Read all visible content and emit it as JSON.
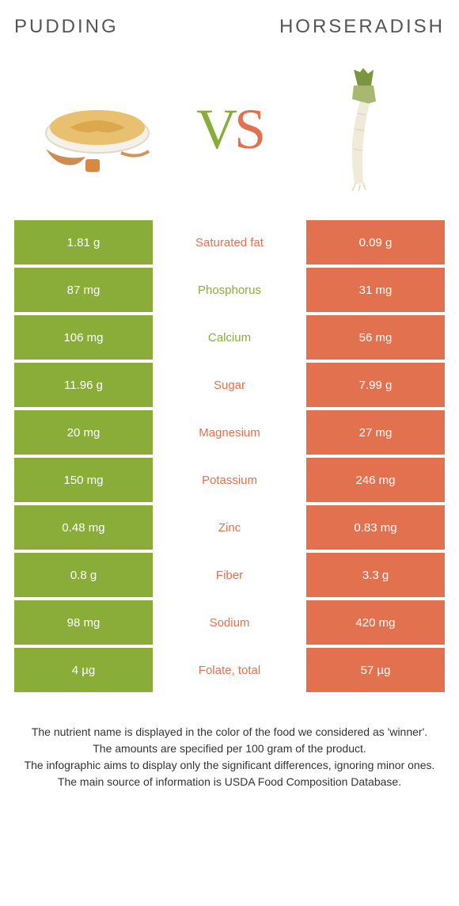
{
  "food1": {
    "title": "Pudding",
    "color": "#8aad3a"
  },
  "food2": {
    "title": "Horseradish",
    "color": "#e2724f"
  },
  "vs": {
    "v": "V",
    "s": "S"
  },
  "rows": [
    {
      "left": "1.81 g",
      "label": "Saturated fat",
      "right": "0.09 g",
      "winner": "right"
    },
    {
      "left": "87 mg",
      "label": "Phosphorus",
      "right": "31 mg",
      "winner": "left"
    },
    {
      "left": "106 mg",
      "label": "Calcium",
      "right": "56 mg",
      "winner": "left"
    },
    {
      "left": "11.96 g",
      "label": "Sugar",
      "right": "7.99 g",
      "winner": "right"
    },
    {
      "left": "20 mg",
      "label": "Magnesium",
      "right": "27 mg",
      "winner": "right"
    },
    {
      "left": "150 mg",
      "label": "Potassium",
      "right": "246 mg",
      "winner": "right"
    },
    {
      "left": "0.48 mg",
      "label": "Zinc",
      "right": "0.83 mg",
      "winner": "right"
    },
    {
      "left": "0.8 g",
      "label": "Fiber",
      "right": "3.3 g",
      "winner": "right"
    },
    {
      "left": "98 mg",
      "label": "Sodium",
      "right": "420 mg",
      "winner": "right"
    },
    {
      "left": "4 µg",
      "label": "Folate, total",
      "right": "57 µg",
      "winner": "right"
    }
  ],
  "footer": {
    "line1": "The nutrient name is displayed in the color of the food we considered as 'winner'.",
    "line2": "The amounts are specified per 100 gram of the product.",
    "line3": "The infographic aims to display only the significant differences, ignoring minor ones.",
    "line4": "The main source of information is USDA Food Composition Database."
  },
  "colors": {
    "left_bg": "#8aad3a",
    "right_bg": "#e2724f",
    "page_bg": "#ffffff",
    "title_color": "#555555",
    "footer_color": "#333333"
  }
}
